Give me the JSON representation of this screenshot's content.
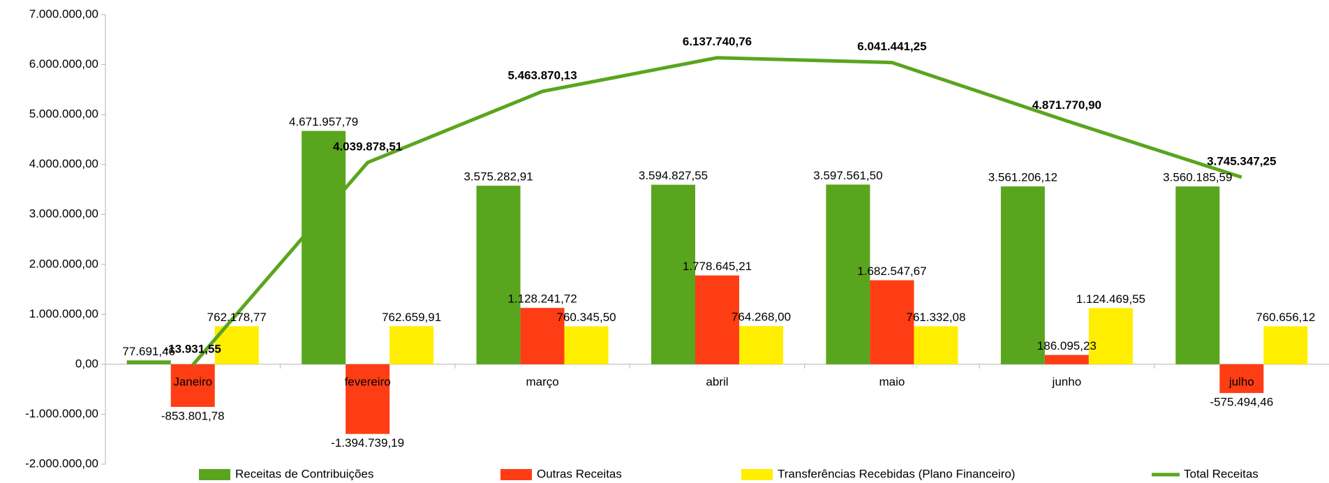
{
  "chart_data": {
    "type": "bar",
    "categories": [
      "Janeiro",
      "fevereiro",
      "março",
      "abril",
      "maio",
      "junho",
      "julho"
    ],
    "series": [
      {
        "name": "Receitas de Contribuições",
        "color": "#5aa51e",
        "kind": "bar",
        "values": [
          77691.46,
          4671957.79,
          3575282.91,
          3594827.55,
          3597561.5,
          3561206.12,
          3560185.59
        ],
        "value_labels": [
          "77.691,46",
          "4.671.957,79",
          "3.575.282,91",
          "3.594.827,55",
          "3.597.561,50",
          "3.561.206,12",
          "3.560.185,59"
        ]
      },
      {
        "name": "Outras Receitas",
        "color": "#ff3d14",
        "kind": "bar",
        "values": [
          -853801.78,
          -1394739.19,
          1128241.72,
          1778645.21,
          1682547.67,
          186095.23,
          -575494.46
        ],
        "value_labels": [
          "-853.801,78",
          "-1.394.739,19",
          "1.128.241,72",
          "1.778.645,21",
          "1.682.547,67",
          "186.095,23",
          "-575.494,46"
        ]
      },
      {
        "name": "Transferências Recebidas (Plano Financeiro)",
        "color": "#ffee00",
        "kind": "bar",
        "values": [
          762178.77,
          762659.91,
          760345.5,
          764268.0,
          761332.08,
          1124469.55,
          760656.12
        ],
        "value_labels": [
          "762.178,77",
          "762.659,91",
          "760.345,50",
          "764.268,00",
          "761.332,08",
          "1.124.469,55",
          "760.656,12"
        ]
      },
      {
        "name": "Total Receitas",
        "color": "#5aa51e",
        "kind": "line",
        "values": [
          -13931.55,
          4039878.51,
          5463870.13,
          6137740.76,
          6041441.25,
          4871770.9,
          3745347.25
        ],
        "value_labels": [
          "-13.931,55",
          "4.039.878,51",
          "5.463.870,13",
          "6.137.740,76",
          "6.041.441,25",
          "4.871.770,90",
          "3.745.347,25"
        ]
      }
    ],
    "ylim": [
      -2000000,
      7000000
    ],
    "yticks": [
      {
        "value": -2000000,
        "label": "-2.000.000,00"
      },
      {
        "value": -1000000,
        "label": "-1.000.000,00"
      },
      {
        "value": 0,
        "label": "0,00"
      },
      {
        "value": 1000000,
        "label": "1.000.000,00"
      },
      {
        "value": 2000000,
        "label": "2.000.000,00"
      },
      {
        "value": 3000000,
        "label": "3.000.000,00"
      },
      {
        "value": 4000000,
        "label": "4.000.000,00"
      },
      {
        "value": 5000000,
        "label": "5.000.000,00"
      },
      {
        "value": 6000000,
        "label": "6.000.000,00"
      },
      {
        "value": 7000000,
        "label": "7.000.000,00"
      }
    ],
    "grid": false,
    "legend": "bottom"
  }
}
